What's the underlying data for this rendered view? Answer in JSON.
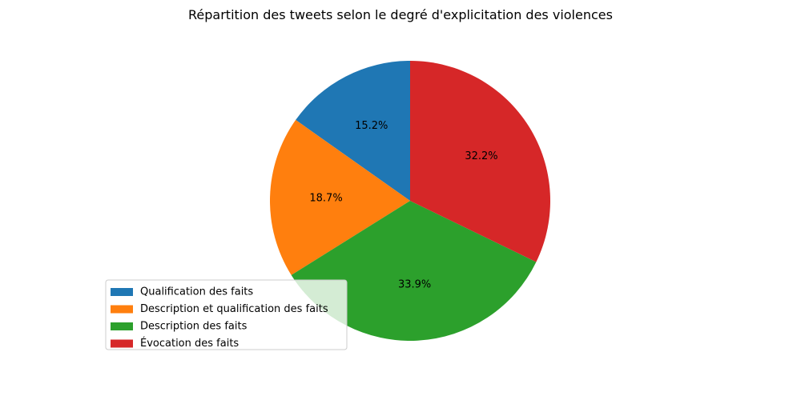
{
  "chart_data": {
    "type": "pie",
    "title": "Répartition des tweets selon le degré d'explicitation des violences",
    "start_angle_deg": 90,
    "direction": "counterclockwise",
    "legend_position": "lower-left",
    "slices": [
      {
        "label": "Qualification des faits",
        "value": 15.2,
        "pct_label": "15.2%",
        "color": "#1f77b4"
      },
      {
        "label": "Description et qualification des faits",
        "value": 18.7,
        "pct_label": "18.7%",
        "color": "#ff7f0e"
      },
      {
        "label": "Description des faits",
        "value": 33.9,
        "pct_label": "33.9%",
        "color": "#2ca02c"
      },
      {
        "label": "Évocation des faits",
        "value": 32.2,
        "pct_label": "32.2%",
        "color": "#d62728"
      }
    ]
  }
}
